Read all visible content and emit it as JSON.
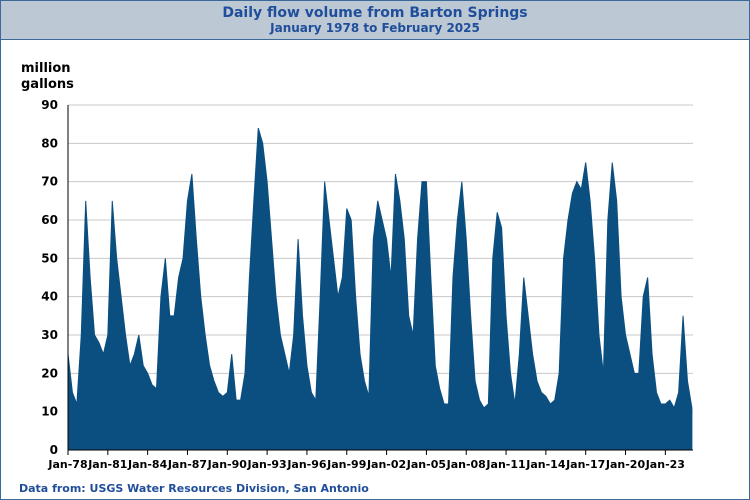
{
  "chart_data": {
    "type": "area",
    "title": "Daily flow volume from Barton Springs",
    "subtitle": "January 1978 to February 2025",
    "y_label": "million gallons",
    "source": "Data from:  USGS Water Resources Division, San Antonio",
    "color": "#0b4f80",
    "grid": true,
    "ylim": [
      0,
      90
    ],
    "yticks": [
      0,
      10,
      20,
      30,
      40,
      50,
      60,
      70,
      80,
      90
    ],
    "xlim": [
      "1978-01",
      "2025-02"
    ],
    "xticks": [
      {
        "value": "1978-01",
        "label": "Jan-78"
      },
      {
        "value": "1981-01",
        "label": "Jan-81"
      },
      {
        "value": "1984-01",
        "label": "Jan-84"
      },
      {
        "value": "1987-01",
        "label": "Jan-87"
      },
      {
        "value": "1990-01",
        "label": "Jan-90"
      },
      {
        "value": "1993-01",
        "label": "Jan-93"
      },
      {
        "value": "1996-01",
        "label": "Jan-96"
      },
      {
        "value": "1999-01",
        "label": "Jan-99"
      },
      {
        "value": "2002-01",
        "label": "Jan-02"
      },
      {
        "value": "2005-01",
        "label": "Jan-05"
      },
      {
        "value": "2008-01",
        "label": "Jan-08"
      },
      {
        "value": "2011-01",
        "label": "Jan-11"
      },
      {
        "value": "2014-01",
        "label": "Jan-14"
      },
      {
        "value": "2017-01",
        "label": "Jan-17"
      },
      {
        "value": "2020-01",
        "label": "Jan-20"
      },
      {
        "value": "2023-01",
        "label": "Jan-23"
      }
    ],
    "x": [
      "1978-01",
      "1978-05",
      "1978-09",
      "1979-01",
      "1979-05",
      "1979-09",
      "1980-01",
      "1980-05",
      "1980-09",
      "1981-01",
      "1981-05",
      "1981-09",
      "1982-01",
      "1982-05",
      "1982-09",
      "1983-01",
      "1983-05",
      "1983-09",
      "1984-01",
      "1984-05",
      "1984-09",
      "1985-01",
      "1985-05",
      "1985-09",
      "1986-01",
      "1986-05",
      "1986-09",
      "1987-01",
      "1987-05",
      "1987-09",
      "1988-01",
      "1988-05",
      "1988-09",
      "1989-01",
      "1989-05",
      "1989-09",
      "1990-01",
      "1990-05",
      "1990-09",
      "1991-01",
      "1991-05",
      "1991-09",
      "1992-01",
      "1992-05",
      "1992-09",
      "1993-01",
      "1993-05",
      "1993-09",
      "1994-01",
      "1994-05",
      "1994-09",
      "1995-01",
      "1995-05",
      "1995-09",
      "1996-01",
      "1996-05",
      "1996-09",
      "1997-01",
      "1997-05",
      "1997-09",
      "1998-01",
      "1998-05",
      "1998-09",
      "1999-01",
      "1999-05",
      "1999-09",
      "2000-01",
      "2000-05",
      "2000-09",
      "2001-01",
      "2001-05",
      "2001-09",
      "2002-01",
      "2002-05",
      "2002-09",
      "2003-01",
      "2003-05",
      "2003-09",
      "2004-01",
      "2004-05",
      "2004-09",
      "2005-01",
      "2005-05",
      "2005-09",
      "2006-01",
      "2006-05",
      "2006-09",
      "2007-01",
      "2007-05",
      "2007-09",
      "2008-01",
      "2008-05",
      "2008-09",
      "2009-01",
      "2009-05",
      "2009-09",
      "2010-01",
      "2010-05",
      "2010-09",
      "2011-01",
      "2011-05",
      "2011-09",
      "2012-01",
      "2012-05",
      "2012-09",
      "2013-01",
      "2013-05",
      "2013-09",
      "2014-01",
      "2014-05",
      "2014-09",
      "2015-01",
      "2015-05",
      "2015-09",
      "2016-01",
      "2016-05",
      "2016-09",
      "2017-01",
      "2017-05",
      "2017-09",
      "2018-01",
      "2018-05",
      "2018-09",
      "2019-01",
      "2019-05",
      "2019-09",
      "2020-01",
      "2020-05",
      "2020-09",
      "2021-01",
      "2021-05",
      "2021-09",
      "2022-01",
      "2022-05",
      "2022-09",
      "2023-01",
      "2023-05",
      "2023-09",
      "2024-01",
      "2024-05",
      "2024-09",
      "2025-01"
    ],
    "values": [
      25,
      15,
      12,
      30,
      65,
      45,
      30,
      28,
      25,
      30,
      65,
      50,
      40,
      30,
      22,
      25,
      30,
      22,
      20,
      17,
      16,
      40,
      50,
      35,
      35,
      45,
      50,
      65,
      72,
      55,
      40,
      30,
      22,
      18,
      15,
      14,
      15,
      25,
      13,
      13,
      20,
      45,
      65,
      84,
      80,
      70,
      55,
      40,
      30,
      25,
      20,
      30,
      55,
      35,
      22,
      15,
      13,
      40,
      70,
      60,
      50,
      40,
      45,
      63,
      60,
      40,
      25,
      18,
      14,
      55,
      65,
      60,
      55,
      45,
      72,
      65,
      55,
      35,
      30,
      55,
      70,
      70,
      45,
      22,
      16,
      12,
      12,
      45,
      60,
      70,
      55,
      35,
      18,
      13,
      11,
      12,
      50,
      62,
      58,
      35,
      20,
      12,
      25,
      45,
      35,
      25,
      18,
      15,
      14,
      12,
      13,
      20,
      50,
      60,
      67,
      70,
      68,
      75,
      65,
      50,
      30,
      20,
      60,
      75,
      65,
      40,
      30,
      25,
      20,
      20,
      40,
      45,
      25,
      15,
      12,
      12,
      13,
      11,
      15,
      35,
      18,
      11
    ]
  }
}
